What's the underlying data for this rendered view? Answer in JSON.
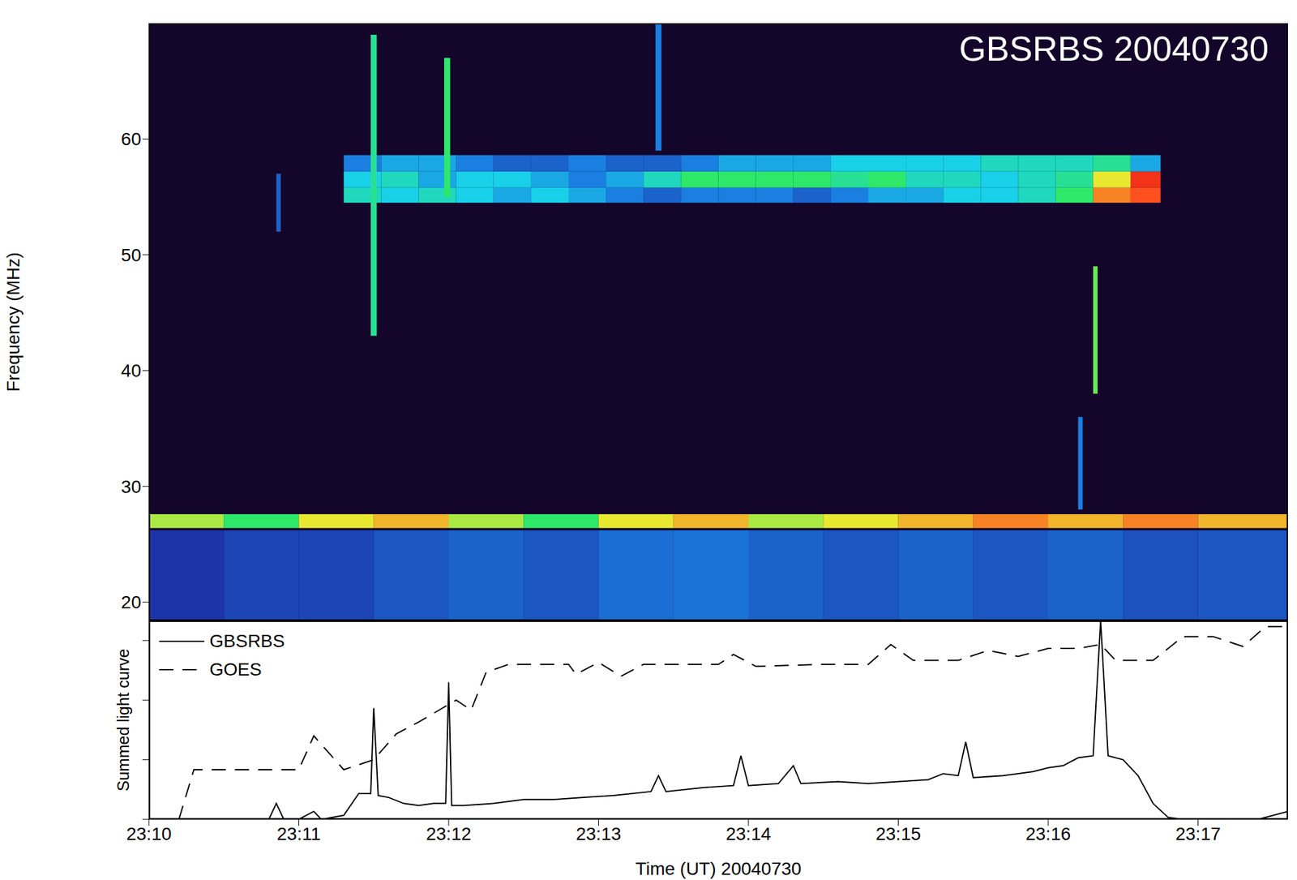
{
  "chart_data": [
    {
      "type": "heatmap",
      "title": "GBSRBS 20040730",
      "y_label": "Frequency (MHz)",
      "xlim": [
        0,
        7.6
      ],
      "xticks": [
        {
          "value": 0,
          "label": "23:10"
        },
        {
          "value": 1,
          "label": "23:11"
        },
        {
          "value": 2,
          "label": "23:12"
        },
        {
          "value": 3,
          "label": "23:13"
        },
        {
          "value": 4,
          "label": "23:14"
        },
        {
          "value": 5,
          "label": "23:15"
        },
        {
          "value": 6,
          "label": "23:16"
        },
        {
          "value": 7,
          "label": "23:17"
        }
      ],
      "ylim": [
        18.4,
        70
      ],
      "yticks": [
        20,
        30,
        40,
        50,
        60
      ],
      "tick_labels": "y",
      "zlim": [
        0,
        1
      ],
      "cells": [
        [
          1.3,
          1.55,
          54.5,
          55.8,
          0.5
        ],
        [
          1.55,
          1.8,
          54.5,
          55.8,
          0.45
        ],
        [
          1.8,
          2.05,
          54.5,
          55.8,
          0.5
        ],
        [
          2.05,
          2.3,
          54.5,
          55.8,
          0.45
        ],
        [
          2.3,
          2.55,
          54.5,
          55.8,
          0.4
        ],
        [
          2.55,
          2.8,
          54.5,
          55.8,
          0.45
        ],
        [
          2.8,
          3.05,
          54.5,
          55.8,
          0.4
        ],
        [
          3.05,
          3.3,
          54.5,
          55.8,
          0.35
        ],
        [
          1.3,
          1.55,
          55.8,
          57.2,
          0.45
        ],
        [
          1.55,
          1.8,
          55.8,
          57.2,
          0.5
        ],
        [
          1.8,
          2.05,
          55.8,
          57.2,
          0.4
        ],
        [
          2.05,
          2.3,
          55.8,
          57.2,
          0.45
        ],
        [
          2.3,
          2.55,
          55.8,
          57.2,
          0.45
        ],
        [
          2.55,
          2.8,
          55.8,
          57.2,
          0.4
        ],
        [
          2.8,
          3.05,
          55.8,
          57.2,
          0.35
        ],
        [
          3.05,
          3.3,
          55.8,
          57.2,
          0.4
        ],
        [
          1.3,
          1.55,
          57.2,
          58.6,
          0.35
        ],
        [
          1.55,
          1.8,
          57.2,
          58.6,
          0.4
        ],
        [
          1.8,
          2.05,
          57.2,
          58.6,
          0.4
        ],
        [
          2.05,
          2.3,
          57.2,
          58.6,
          0.35
        ],
        [
          2.3,
          2.55,
          57.2,
          58.6,
          0.3
        ],
        [
          2.55,
          2.8,
          57.2,
          58.6,
          0.3
        ],
        [
          2.8,
          3.05,
          57.2,
          58.6,
          0.35
        ],
        [
          3.05,
          3.3,
          57.2,
          58.6,
          0.3
        ],
        [
          3.3,
          3.55,
          54.5,
          55.8,
          0.3
        ],
        [
          3.55,
          3.8,
          54.5,
          55.8,
          0.35
        ],
        [
          3.8,
          4.05,
          54.5,
          55.8,
          0.35
        ],
        [
          4.05,
          4.3,
          54.5,
          55.8,
          0.35
        ],
        [
          4.3,
          4.55,
          54.5,
          55.8,
          0.3
        ],
        [
          3.3,
          3.55,
          55.8,
          57.2,
          0.5
        ],
        [
          3.55,
          3.8,
          55.8,
          57.2,
          0.6
        ],
        [
          3.8,
          4.05,
          55.8,
          57.2,
          0.6
        ],
        [
          4.05,
          4.3,
          55.8,
          57.2,
          0.6
        ],
        [
          4.3,
          4.55,
          55.8,
          57.2,
          0.6
        ],
        [
          3.3,
          3.55,
          57.2,
          58.6,
          0.3
        ],
        [
          3.55,
          3.8,
          57.2,
          58.6,
          0.35
        ],
        [
          3.8,
          4.05,
          57.2,
          58.6,
          0.4
        ],
        [
          4.05,
          4.3,
          57.2,
          58.6,
          0.4
        ],
        [
          4.3,
          4.55,
          57.2,
          58.6,
          0.4
        ],
        [
          4.55,
          4.8,
          54.5,
          55.8,
          0.35
        ],
        [
          4.8,
          5.05,
          54.5,
          55.8,
          0.4
        ],
        [
          5.05,
          5.3,
          54.5,
          55.8,
          0.4
        ],
        [
          5.3,
          5.55,
          54.5,
          55.8,
          0.45
        ],
        [
          5.55,
          5.8,
          54.5,
          55.8,
          0.45
        ],
        [
          5.8,
          6.05,
          54.5,
          55.8,
          0.5
        ],
        [
          4.55,
          4.8,
          55.8,
          57.2,
          0.55
        ],
        [
          4.8,
          5.05,
          55.8,
          57.2,
          0.6
        ],
        [
          5.05,
          5.3,
          55.8,
          57.2,
          0.5
        ],
        [
          5.3,
          5.55,
          55.8,
          57.2,
          0.5
        ],
        [
          5.55,
          5.8,
          55.8,
          57.2,
          0.45
        ],
        [
          5.8,
          6.05,
          55.8,
          57.2,
          0.5
        ],
        [
          4.55,
          4.8,
          57.2,
          58.6,
          0.45
        ],
        [
          4.8,
          5.05,
          57.2,
          58.6,
          0.45
        ],
        [
          5.05,
          5.3,
          57.2,
          58.6,
          0.45
        ],
        [
          5.3,
          5.55,
          57.2,
          58.6,
          0.45
        ],
        [
          5.55,
          5.8,
          57.2,
          58.6,
          0.5
        ],
        [
          5.8,
          6.05,
          57.2,
          58.6,
          0.5
        ],
        [
          6.05,
          6.3,
          54.5,
          55.8,
          0.6
        ],
        [
          6.3,
          6.55,
          54.5,
          55.8,
          0.85
        ],
        [
          6.55,
          6.75,
          54.5,
          55.8,
          0.9
        ],
        [
          6.05,
          6.3,
          55.8,
          57.2,
          0.55
        ],
        [
          6.3,
          6.55,
          55.8,
          57.2,
          0.75
        ],
        [
          6.55,
          6.75,
          55.8,
          57.2,
          0.95
        ],
        [
          6.05,
          6.3,
          57.2,
          58.6,
          0.5
        ],
        [
          6.3,
          6.55,
          57.2,
          58.6,
          0.55
        ],
        [
          6.55,
          6.75,
          57.2,
          58.6,
          0.4
        ],
        [
          0,
          0.5,
          26.4,
          27.6,
          0.7
        ],
        [
          0.5,
          1,
          26.4,
          27.6,
          0.6
        ],
        [
          1,
          1.5,
          26.4,
          27.6,
          0.75
        ],
        [
          1.5,
          2,
          26.4,
          27.6,
          0.8
        ],
        [
          2,
          2.5,
          26.4,
          27.6,
          0.7
        ],
        [
          2.5,
          3,
          26.4,
          27.6,
          0.6
        ],
        [
          3,
          3.5,
          26.4,
          27.6,
          0.75
        ],
        [
          3.5,
          4,
          26.4,
          27.6,
          0.8
        ],
        [
          4,
          4.5,
          26.4,
          27.6,
          0.7
        ],
        [
          4.5,
          5,
          26.4,
          27.6,
          0.75
        ],
        [
          5,
          5.5,
          26.4,
          27.6,
          0.8
        ],
        [
          5.5,
          6,
          26.4,
          27.6,
          0.85
        ],
        [
          6,
          6.5,
          26.4,
          27.6,
          0.8
        ],
        [
          6.5,
          7,
          26.4,
          27.6,
          0.85
        ],
        [
          7,
          7.6,
          26.4,
          27.6,
          0.8
        ],
        [
          0,
          0.5,
          18.4,
          26.2,
          0.22
        ],
        [
          0.5,
          1,
          18.4,
          26.2,
          0.25
        ],
        [
          1,
          1.5,
          18.4,
          26.2,
          0.25
        ],
        [
          1.5,
          2,
          18.4,
          26.2,
          0.28
        ],
        [
          2,
          2.5,
          18.4,
          26.2,
          0.3
        ],
        [
          2.5,
          3,
          18.4,
          26.2,
          0.28
        ],
        [
          3,
          3.5,
          18.4,
          26.2,
          0.32
        ],
        [
          3.5,
          4,
          18.4,
          26.2,
          0.33
        ],
        [
          4,
          4.5,
          18.4,
          26.2,
          0.3
        ],
        [
          4.5,
          5,
          18.4,
          26.2,
          0.28
        ],
        [
          5,
          5.5,
          18.4,
          26.2,
          0.3
        ],
        [
          5.5,
          6,
          18.4,
          26.2,
          0.28
        ],
        [
          6,
          6.5,
          18.4,
          26.2,
          0.3
        ],
        [
          6.5,
          7,
          18.4,
          26.2,
          0.27
        ],
        [
          7,
          7.6,
          18.4,
          26.2,
          0.28
        ],
        [
          1.48,
          1.52,
          43,
          69,
          0.55
        ],
        [
          1.97,
          2.01,
          55,
          67,
          0.6
        ],
        [
          3.38,
          3.42,
          59,
          70,
          0.35
        ],
        [
          6.3,
          6.33,
          38,
          49,
          0.65
        ],
        [
          0.85,
          0.88,
          52,
          57,
          0.3
        ],
        [
          6.2,
          6.23,
          28,
          36,
          0.35
        ]
      ]
    },
    {
      "type": "line",
      "x_label": "Time (UT) 20040730",
      "y_label": "Summed light curve",
      "xlim": [
        0,
        7.6
      ],
      "xticks": [
        {
          "value": 0,
          "label": "23:10"
        },
        {
          "value": 1,
          "label": "23:11"
        },
        {
          "value": 2,
          "label": "23:12"
        },
        {
          "value": 3,
          "label": "23:13"
        },
        {
          "value": 4,
          "label": "23:14"
        },
        {
          "value": 5,
          "label": "23:15"
        },
        {
          "value": 6,
          "label": "23:16"
        },
        {
          "value": 7,
          "label": "23:17"
        }
      ],
      "ylim": [
        0,
        1
      ],
      "yticks": [
        0,
        0.3,
        0.6,
        0.9
      ],
      "tick_labels": "x",
      "legend": "upper left",
      "series": [
        {
          "name": "GBSRBS",
          "color": "#000000",
          "line_style": "solid",
          "x": [
            0.0,
            0.2,
            0.4,
            0.6,
            0.8,
            0.85,
            0.9,
            1.0,
            1.1,
            1.15,
            1.3,
            1.4,
            1.48,
            1.5,
            1.53,
            1.6,
            1.7,
            1.8,
            1.9,
            1.98,
            2.0,
            2.02,
            2.1,
            2.3,
            2.5,
            2.7,
            2.9,
            3.1,
            3.35,
            3.4,
            3.45,
            3.7,
            3.9,
            3.95,
            4.0,
            4.2,
            4.3,
            4.35,
            4.6,
            4.8,
            5.0,
            5.2,
            5.3,
            5.4,
            5.45,
            5.5,
            5.7,
            5.9,
            6.0,
            6.1,
            6.2,
            6.3,
            6.35,
            6.4,
            6.5,
            6.6,
            6.7,
            6.8,
            6.9,
            7.0,
            7.2,
            7.4,
            7.6
          ],
          "values": [
            0,
            0,
            0,
            0,
            0,
            0.08,
            0,
            0,
            0.04,
            0,
            0.02,
            0.13,
            0.13,
            0.56,
            0.12,
            0.11,
            0.08,
            0.07,
            0.08,
            0.08,
            0.69,
            0.07,
            0.07,
            0.08,
            0.1,
            0.1,
            0.11,
            0.12,
            0.14,
            0.22,
            0.14,
            0.16,
            0.17,
            0.32,
            0.17,
            0.18,
            0.27,
            0.18,
            0.19,
            0.18,
            0.19,
            0.2,
            0.23,
            0.22,
            0.39,
            0.21,
            0.22,
            0.24,
            0.26,
            0.27,
            0.31,
            0.32,
            1.0,
            0.32,
            0.3,
            0.22,
            0.08,
            0.01,
            0,
            0,
            0,
            0,
            0.04
          ]
        },
        {
          "name": "GOES",
          "color": "#000000",
          "line_style": "dashed",
          "x": [
            0.2,
            0.3,
            1.0,
            1.1,
            1.3,
            1.5,
            1.65,
            1.8,
            2.05,
            2.15,
            2.25,
            2.4,
            2.8,
            2.85,
            3.0,
            3.15,
            3.3,
            3.8,
            3.9,
            4.05,
            4.5,
            4.8,
            4.95,
            5.1,
            5.4,
            5.6,
            5.8,
            6.0,
            6.2,
            6.35,
            6.45,
            6.7,
            6.9,
            7.1,
            7.3,
            7.45,
            7.6
          ],
          "values": [
            0,
            0.25,
            0.25,
            0.42,
            0.25,
            0.3,
            0.43,
            0.49,
            0.6,
            0.55,
            0.74,
            0.78,
            0.78,
            0.73,
            0.79,
            0.72,
            0.78,
            0.78,
            0.83,
            0.77,
            0.78,
            0.78,
            0.88,
            0.8,
            0.8,
            0.85,
            0.82,
            0.86,
            0.86,
            0.88,
            0.8,
            0.8,
            0.92,
            0.92,
            0.87,
            0.97,
            0.97
          ]
        }
      ]
    }
  ]
}
